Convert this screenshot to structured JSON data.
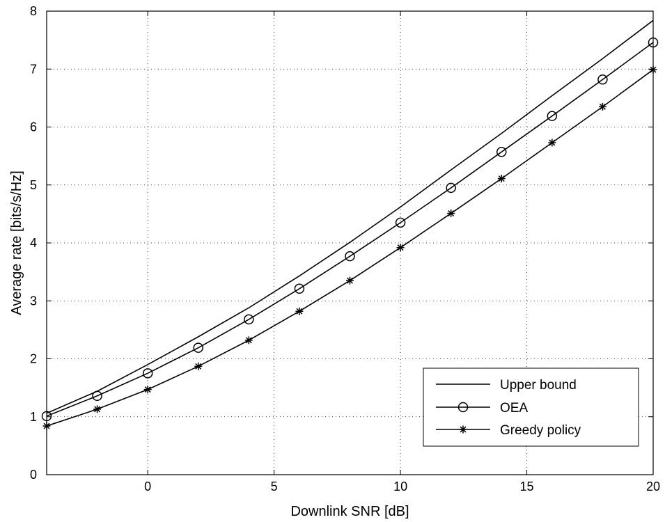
{
  "chart_data": {
    "type": "line",
    "title": "",
    "xlabel": "Downlink SNR [dB]",
    "ylabel": "Average rate [bits/s/Hz]",
    "xlim": [
      -4,
      20
    ],
    "ylim": [
      0,
      8
    ],
    "xticks": [
      0,
      5,
      10,
      15,
      20
    ],
    "yticks": [
      0,
      1,
      2,
      3,
      4,
      5,
      6,
      7,
      8
    ],
    "grid": true,
    "legend_position": "bottom-right",
    "series": [
      {
        "name": "Upper bound",
        "marker": "none",
        "x": [
          -4,
          -2,
          0,
          2,
          4,
          6,
          8,
          10,
          12,
          14,
          16,
          18,
          20
        ],
        "y": [
          1.06,
          1.44,
          1.9,
          2.38,
          2.88,
          3.43,
          4.01,
          4.62,
          5.26,
          5.89,
          6.54,
          7.18,
          7.84
        ]
      },
      {
        "name": "OEA",
        "marker": "circle",
        "x": [
          -4,
          -2,
          0,
          2,
          4,
          6,
          8,
          10,
          12,
          14,
          16,
          18,
          20
        ],
        "y": [
          1.01,
          1.36,
          1.75,
          2.19,
          2.68,
          3.21,
          3.77,
          4.35,
          4.95,
          5.57,
          6.19,
          6.82,
          7.46
        ]
      },
      {
        "name": "Greedy policy",
        "marker": "asterisk",
        "x": [
          -4,
          -2,
          0,
          2,
          4,
          6,
          8,
          10,
          12,
          14,
          16,
          18,
          20
        ],
        "y": [
          0.84,
          1.13,
          1.47,
          1.87,
          2.32,
          2.82,
          3.35,
          3.92,
          4.51,
          5.11,
          5.73,
          6.35,
          6.99
        ]
      }
    ],
    "colors": {
      "line": "#000000",
      "grid": "#000000",
      "background": "#ffffff"
    }
  }
}
